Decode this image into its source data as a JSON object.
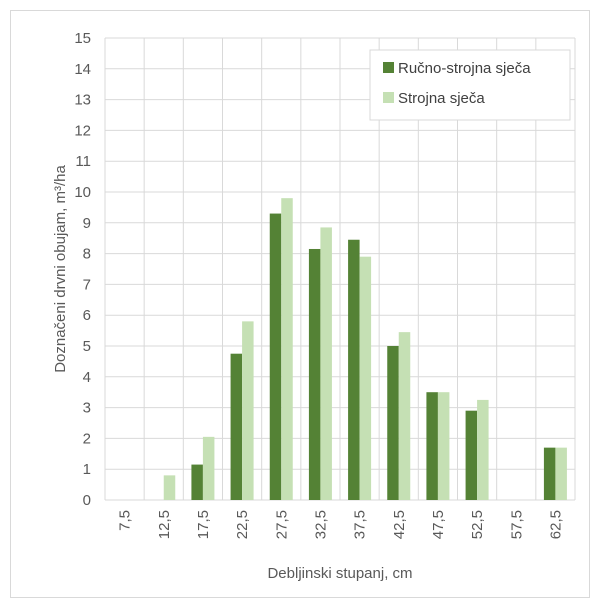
{
  "chart_data": {
    "type": "bar",
    "title": "",
    "xlabel": "Debljinski stupanj, cm",
    "ylabel": "Doznačeni drvni obujam, m³/ha",
    "categories": [
      "7,5",
      "12,5",
      "17,5",
      "22,5",
      "27,5",
      "32,5",
      "37,5",
      "42,5",
      "47,5",
      "52,5",
      "57,5",
      "62,5"
    ],
    "series": [
      {
        "name": "Ručno-strojna sječa",
        "color": "#548235",
        "values": [
          0,
          0,
          1.15,
          4.75,
          9.3,
          8.15,
          8.45,
          5.0,
          3.5,
          2.9,
          0,
          1.7
        ]
      },
      {
        "name": "Strojna sječa",
        "color": "#c5e0b4",
        "values": [
          0,
          0.8,
          2.05,
          5.8,
          9.8,
          8.85,
          7.9,
          5.45,
          3.5,
          3.25,
          0,
          1.7
        ]
      }
    ],
    "ylim": [
      0,
      15
    ],
    "yticks": [
      "0",
      "1",
      "2",
      "3",
      "4",
      "5",
      "6",
      "7",
      "8",
      "9",
      "10",
      "11",
      "12",
      "13",
      "14",
      "15"
    ],
    "grid": true,
    "legend_position": "top-right"
  }
}
